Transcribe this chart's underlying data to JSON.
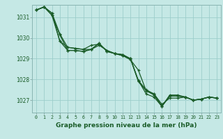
{
  "background_color": "#c5e8e5",
  "grid_color": "#9dcecb",
  "line_color": "#1a5c28",
  "xlabel": "Graphe pression niveau de la mer (hPa)",
  "xlim": [
    -0.5,
    23.5
  ],
  "ylim": [
    1026.4,
    1031.6
  ],
  "yticks": [
    1027,
    1028,
    1029,
    1030,
    1031
  ],
  "xticks": [
    0,
    1,
    2,
    3,
    4,
    5,
    6,
    7,
    8,
    9,
    10,
    11,
    12,
    13,
    14,
    15,
    16,
    17,
    18,
    19,
    20,
    21,
    22,
    23
  ],
  "series": [
    [
      1031.35,
      1031.5,
      1031.2,
      1030.2,
      1029.55,
      1029.5,
      1029.45,
      1029.45,
      1029.65,
      1029.4,
      1029.25,
      1029.2,
      1029.0,
      1027.95,
      1027.5,
      1027.3,
      1026.8,
      1027.1,
      1027.1,
      1027.15,
      1027.0,
      1027.05,
      1027.15,
      1027.1
    ],
    [
      1031.35,
      1031.5,
      1031.2,
      1029.85,
      1029.55,
      1029.5,
      1029.45,
      1029.65,
      1029.7,
      1029.4,
      1029.25,
      1029.2,
      1029.0,
      1027.95,
      1027.3,
      1027.15,
      1026.7,
      1027.25,
      1027.25,
      1027.15,
      1027.0,
      1027.05,
      1027.15,
      1027.1
    ],
    [
      1031.35,
      1031.5,
      1031.1,
      1029.85,
      1029.4,
      1029.4,
      1029.35,
      1029.45,
      1029.75,
      1029.35,
      1029.25,
      1029.15,
      1029.0,
      1027.9,
      1027.45,
      1027.25,
      1026.7,
      1027.2,
      1027.2,
      1027.15,
      1027.0,
      1027.05,
      1027.15,
      1027.1
    ],
    [
      1031.35,
      1031.5,
      1031.1,
      1030.15,
      1029.4,
      1029.4,
      1029.35,
      1029.45,
      1029.75,
      1029.35,
      1029.25,
      1029.15,
      1028.95,
      1028.45,
      1027.45,
      1027.3,
      1026.7,
      1027.2,
      1027.2,
      1027.15,
      1027.0,
      1027.05,
      1027.15,
      1027.1
    ]
  ]
}
